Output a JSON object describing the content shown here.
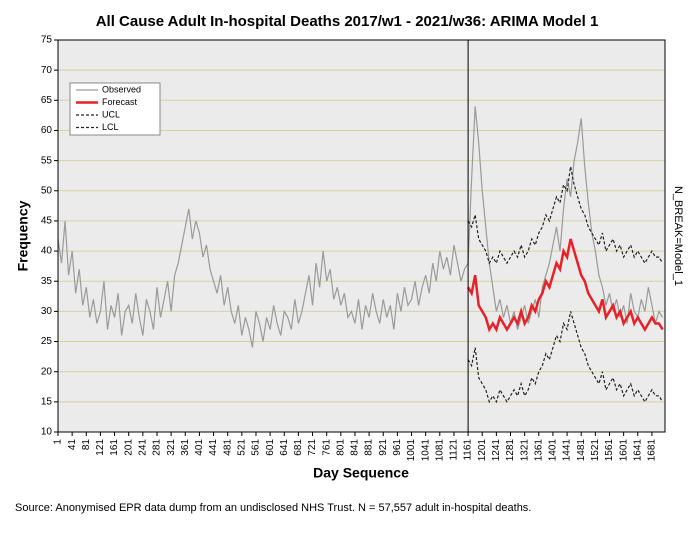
{
  "chart_data": {
    "type": "line",
    "title": "All Cause Adult In-hospital Deaths 2017/w1 - 2021/w36: ARIMA Model 1",
    "x_label": "Day Sequence",
    "y_label": "Frequency",
    "right_label": "N_BREAK=Model_1",
    "note": "Source: Anonymised EPR data dump from an undisclosed NHS Trust. N = 57,557 adult in-hospital deaths.",
    "xlim": [
      1,
      1718
    ],
    "ylim": [
      10,
      75
    ],
    "xticks": [
      1,
      41,
      81,
      121,
      161,
      201,
      241,
      281,
      321,
      361,
      401,
      441,
      481,
      521,
      561,
      601,
      641,
      681,
      721,
      761,
      801,
      841,
      881,
      921,
      961,
      1001,
      1041,
      1081,
      1121,
      1161,
      1201,
      1241,
      1281,
      1321,
      1361,
      1401,
      1441,
      1481,
      1521,
      1561,
      1601,
      1641,
      1681
    ],
    "yticks": [
      10,
      15,
      20,
      25,
      30,
      35,
      40,
      45,
      50,
      55,
      60,
      65,
      70,
      75
    ],
    "grid": true,
    "break_x": 1161,
    "legend_position": "upper left",
    "x": [
      1,
      11,
      21,
      31,
      41,
      51,
      61,
      71,
      81,
      91,
      101,
      111,
      121,
      131,
      141,
      151,
      161,
      171,
      181,
      191,
      201,
      211,
      221,
      231,
      241,
      251,
      261,
      271,
      281,
      291,
      301,
      311,
      321,
      331,
      341,
      351,
      361,
      371,
      381,
      391,
      401,
      411,
      421,
      431,
      441,
      451,
      461,
      471,
      481,
      491,
      501,
      511,
      521,
      531,
      541,
      551,
      561,
      571,
      581,
      591,
      601,
      611,
      621,
      631,
      641,
      651,
      661,
      671,
      681,
      691,
      701,
      711,
      721,
      731,
      741,
      751,
      761,
      771,
      781,
      791,
      801,
      811,
      821,
      831,
      841,
      851,
      861,
      871,
      881,
      891,
      901,
      911,
      921,
      931,
      941,
      951,
      961,
      971,
      981,
      991,
      1001,
      1011,
      1021,
      1031,
      1041,
      1051,
      1061,
      1071,
      1081,
      1091,
      1101,
      1111,
      1121,
      1131,
      1141,
      1151,
      1161,
      1171,
      1181,
      1191,
      1201,
      1211,
      1221,
      1231,
      1241,
      1251,
      1261,
      1271,
      1281,
      1291,
      1301,
      1311,
      1321,
      1331,
      1341,
      1351,
      1361,
      1371,
      1381,
      1391,
      1401,
      1411,
      1421,
      1431,
      1441,
      1451,
      1461,
      1471,
      1481,
      1491,
      1501,
      1511,
      1521,
      1531,
      1541,
      1551,
      1561,
      1571,
      1581,
      1591,
      1601,
      1611,
      1621,
      1631,
      1641,
      1651,
      1661,
      1671,
      1681,
      1691,
      1701,
      1711
    ],
    "series": [
      {
        "name": "Observed",
        "color": "#9a9a9a",
        "width": 1.2,
        "dashed": false,
        "values": [
          42,
          38,
          45,
          36,
          40,
          33,
          37,
          31,
          34,
          29,
          32,
          28,
          30,
          35,
          27,
          31,
          29,
          33,
          26,
          30,
          31,
          28,
          33,
          29,
          26,
          32,
          30,
          27,
          34,
          29,
          32,
          35,
          30,
          36,
          38,
          41,
          44,
          47,
          42,
          45,
          43,
          39,
          41,
          37,
          35,
          33,
          36,
          31,
          34,
          30,
          28,
          31,
          26,
          29,
          27,
          24,
          30,
          28,
          25,
          29,
          27,
          31,
          28,
          26,
          30,
          29,
          27,
          32,
          28,
          30,
          33,
          36,
          31,
          38,
          34,
          40,
          35,
          37,
          32,
          34,
          31,
          33,
          29,
          30,
          28,
          32,
          27,
          31,
          29,
          33,
          30,
          28,
          32,
          29,
          31,
          27,
          33,
          30,
          34,
          31,
          32,
          35,
          31,
          34,
          36,
          33,
          38,
          35,
          40,
          37,
          39,
          36,
          41,
          38,
          35,
          37,
          38,
          52,
          64,
          58,
          50,
          44,
          38,
          34,
          30,
          32,
          29,
          31,
          28,
          30,
          27,
          29,
          31,
          28,
          30,
          32,
          29,
          34,
          36,
          38,
          41,
          44,
          40,
          47,
          52,
          49,
          55,
          58,
          62,
          54,
          48,
          43,
          40,
          36,
          34,
          31,
          33,
          30,
          32,
          29,
          31,
          28,
          33,
          30,
          29,
          32,
          30,
          34,
          31,
          28,
          30,
          29
        ]
      },
      {
        "name": "Forecast",
        "color": "#e8202a",
        "width": 2.5,
        "dashed": false,
        "values": [
          null,
          null,
          null,
          null,
          null,
          null,
          null,
          null,
          null,
          null,
          null,
          null,
          null,
          null,
          null,
          null,
          null,
          null,
          null,
          null,
          null,
          null,
          null,
          null,
          null,
          null,
          null,
          null,
          null,
          null,
          null,
          null,
          null,
          null,
          null,
          null,
          null,
          null,
          null,
          null,
          null,
          null,
          null,
          null,
          null,
          null,
          null,
          null,
          null,
          null,
          null,
          null,
          null,
          null,
          null,
          null,
          null,
          null,
          null,
          null,
          null,
          null,
          null,
          null,
          null,
          null,
          null,
          null,
          null,
          null,
          null,
          null,
          null,
          null,
          null,
          null,
          null,
          null,
          null,
          null,
          null,
          null,
          null,
          null,
          null,
          null,
          null,
          null,
          null,
          null,
          null,
          null,
          null,
          null,
          null,
          null,
          null,
          null,
          null,
          null,
          null,
          null,
          null,
          null,
          null,
          null,
          null,
          null,
          null,
          null,
          null,
          null,
          null,
          null,
          null,
          null,
          34,
          33,
          36,
          31,
          30,
          29,
          27,
          28,
          27,
          29,
          28,
          27,
          28,
          29,
          28,
          30,
          28,
          29,
          31,
          30,
          32,
          33,
          35,
          34,
          36,
          38,
          37,
          40,
          39,
          42,
          40,
          38,
          36,
          35,
          33,
          32,
          31,
          30,
          32,
          29,
          30,
          31,
          29,
          30,
          28,
          29,
          30,
          28,
          29,
          28,
          27,
          28,
          29,
          28,
          28,
          27
        ]
      },
      {
        "name": "UCL",
        "color": "#222222",
        "width": 1.2,
        "dashed": true,
        "values": [
          null,
          null,
          null,
          null,
          null,
          null,
          null,
          null,
          null,
          null,
          null,
          null,
          null,
          null,
          null,
          null,
          null,
          null,
          null,
          null,
          null,
          null,
          null,
          null,
          null,
          null,
          null,
          null,
          null,
          null,
          null,
          null,
          null,
          null,
          null,
          null,
          null,
          null,
          null,
          null,
          null,
          null,
          null,
          null,
          null,
          null,
          null,
          null,
          null,
          null,
          null,
          null,
          null,
          null,
          null,
          null,
          null,
          null,
          null,
          null,
          null,
          null,
          null,
          null,
          null,
          null,
          null,
          null,
          null,
          null,
          null,
          null,
          null,
          null,
          null,
          null,
          null,
          null,
          null,
          null,
          null,
          null,
          null,
          null,
          null,
          null,
          null,
          null,
          null,
          null,
          null,
          null,
          null,
          null,
          null,
          null,
          null,
          null,
          null,
          null,
          null,
          null,
          null,
          null,
          null,
          null,
          null,
          null,
          null,
          null,
          null,
          null,
          null,
          null,
          null,
          null,
          45,
          44,
          46,
          42,
          41,
          40,
          38,
          39,
          38,
          40,
          39,
          38,
          39,
          40,
          39,
          41,
          39,
          40,
          42,
          41,
          43,
          44,
          46,
          45,
          47,
          49,
          48,
          51,
          50,
          54,
          51,
          49,
          47,
          46,
          44,
          43,
          42,
          41,
          43,
          40,
          41,
          42,
          40,
          41,
          39,
          40,
          41,
          39,
          40,
          39,
          38,
          39,
          40,
          39,
          39,
          38
        ]
      },
      {
        "name": "LCL",
        "color": "#222222",
        "width": 1.2,
        "dashed": true,
        "values": [
          null,
          null,
          null,
          null,
          null,
          null,
          null,
          null,
          null,
          null,
          null,
          null,
          null,
          null,
          null,
          null,
          null,
          null,
          null,
          null,
          null,
          null,
          null,
          null,
          null,
          null,
          null,
          null,
          null,
          null,
          null,
          null,
          null,
          null,
          null,
          null,
          null,
          null,
          null,
          null,
          null,
          null,
          null,
          null,
          null,
          null,
          null,
          null,
          null,
          null,
          null,
          null,
          null,
          null,
          null,
          null,
          null,
          null,
          null,
          null,
          null,
          null,
          null,
          null,
          null,
          null,
          null,
          null,
          null,
          null,
          null,
          null,
          null,
          null,
          null,
          null,
          null,
          null,
          null,
          null,
          null,
          null,
          null,
          null,
          null,
          null,
          null,
          null,
          null,
          null,
          null,
          null,
          null,
          null,
          null,
          null,
          null,
          null,
          null,
          null,
          null,
          null,
          null,
          null,
          null,
          null,
          null,
          null,
          null,
          null,
          null,
          null,
          null,
          null,
          null,
          null,
          22,
          21,
          24,
          19,
          18,
          17,
          15,
          16,
          15,
          17,
          16,
          15,
          16,
          17,
          16,
          18,
          16,
          17,
          19,
          18,
          20,
          21,
          23,
          22,
          24,
          26,
          25,
          28,
          27,
          30,
          28,
          26,
          24,
          23,
          21,
          20,
          19,
          18,
          20,
          17,
          18,
          19,
          17,
          18,
          16,
          17,
          18,
          16,
          17,
          16,
          15,
          16,
          17,
          16,
          16,
          15
        ]
      }
    ]
  }
}
